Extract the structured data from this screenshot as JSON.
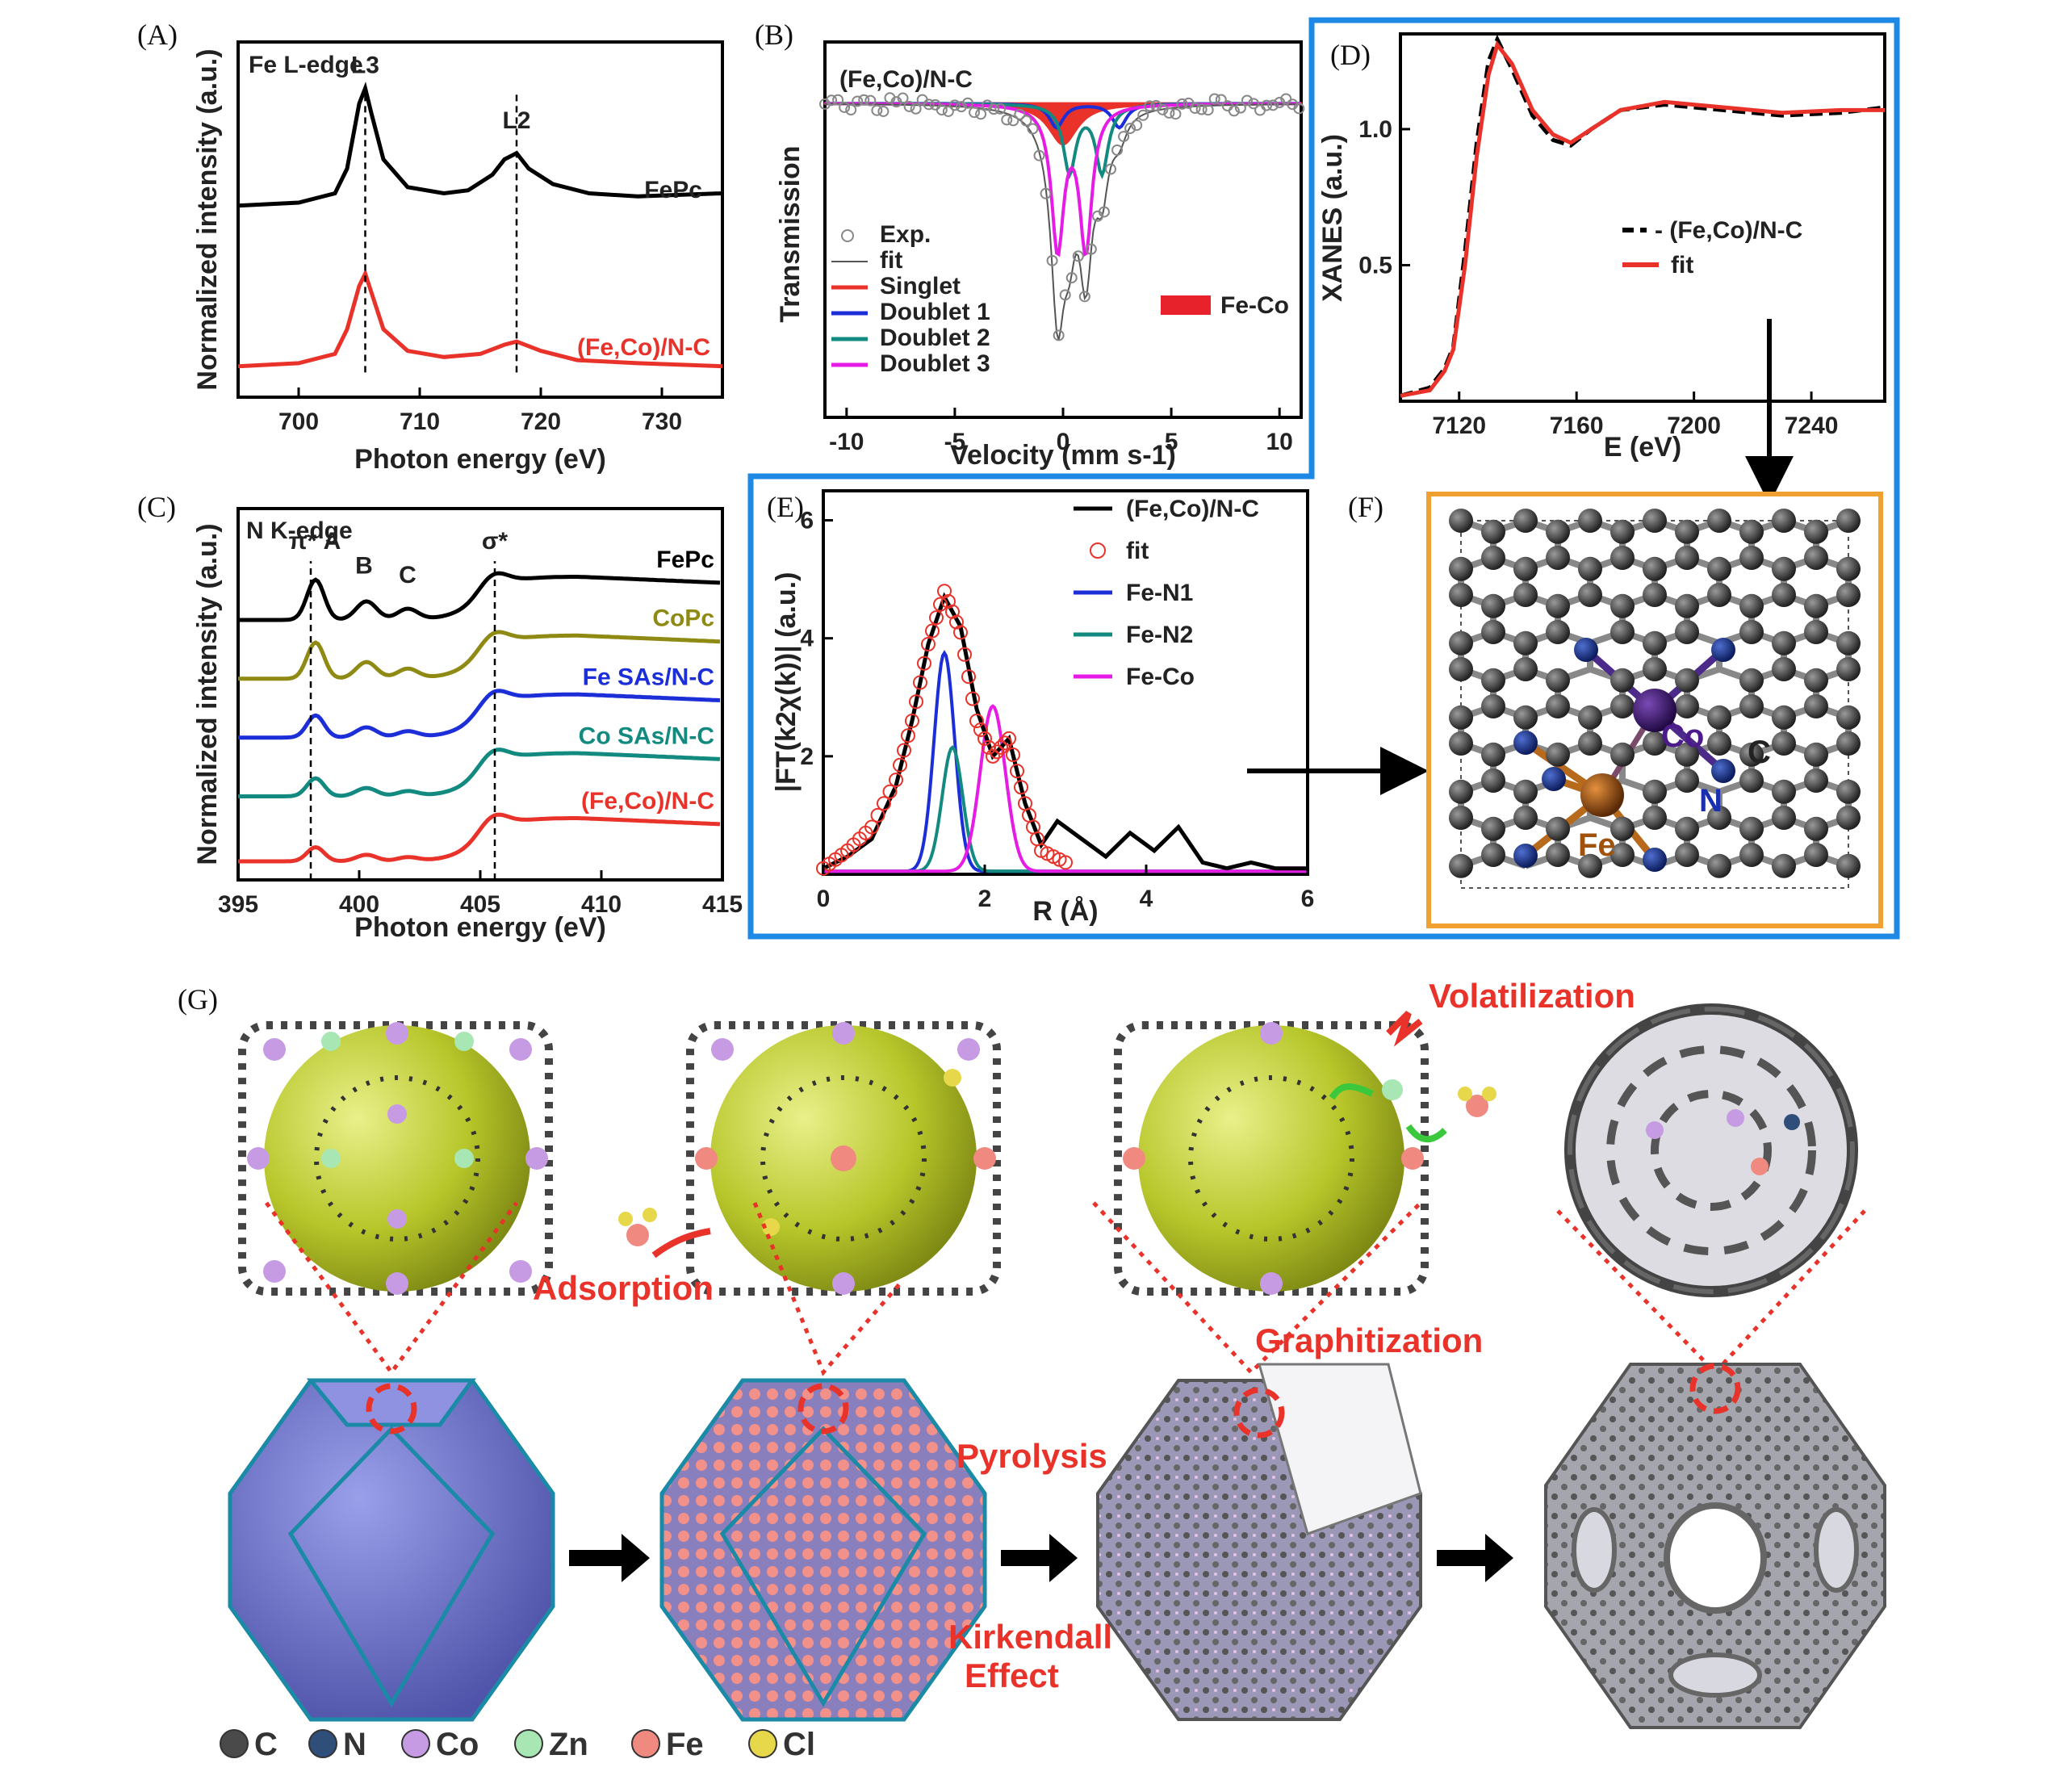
{
  "figure_panels": {
    "A": "(A)",
    "B": "(B)",
    "C": "(C)",
    "D": "(D)",
    "E": "(E)",
    "F": "(F)",
    "G": "(G)"
  },
  "chart_data": [
    {
      "id": "A",
      "type": "line",
      "title": "Fe L-edge",
      "xlabel": "Photon energy (eV)",
      "ylabel": "Normalized intensity (a.u.)",
      "xlim": [
        695,
        735
      ],
      "ylim": [
        0,
        1.15
      ],
      "xticks": [
        "700",
        "710",
        "720",
        "730"
      ],
      "peak_labels": [
        {
          "x": 705.5,
          "text": "L3"
        },
        {
          "x": 718,
          "text": "L2"
        }
      ],
      "series": [
        {
          "name": "FePc",
          "color": "#000000",
          "x": [
            695,
            700,
            703,
            704,
            705,
            705.5,
            706,
            707,
            709,
            712,
            714,
            716,
            717,
            718,
            719,
            721,
            724,
            728,
            735
          ],
          "y": [
            0.62,
            0.63,
            0.66,
            0.74,
            0.95,
            1.0,
            0.92,
            0.77,
            0.68,
            0.66,
            0.67,
            0.72,
            0.77,
            0.79,
            0.74,
            0.69,
            0.66,
            0.65,
            0.66
          ]
        },
        {
          "name": "(Fe,Co)/N-C",
          "color": "#e8322a",
          "x": [
            695,
            700,
            703,
            704,
            705,
            705.5,
            706,
            707,
            709,
            712,
            715,
            717,
            718,
            720,
            723,
            728,
            735
          ],
          "y": [
            0.1,
            0.11,
            0.14,
            0.22,
            0.36,
            0.4,
            0.34,
            0.22,
            0.15,
            0.13,
            0.14,
            0.17,
            0.18,
            0.15,
            0.12,
            0.11,
            0.1
          ]
        }
      ]
    },
    {
      "id": "B",
      "type": "scatter",
      "title": "(Fe,Co)/N-C",
      "xlabel": "Velocity (mm s-1)",
      "ylabel": "Transmission",
      "xlim": [
        -11,
        11
      ],
      "ylim": [
        0,
        1.1
      ],
      "xticks": [
        "-10",
        "-5",
        "0",
        "5",
        "10"
      ],
      "legend": [
        "Exp.",
        "fit",
        "Singlet",
        "Doublet 1",
        "Doublet 2",
        "Doublet 3"
      ],
      "component_label": "Fe-Co",
      "series": [
        {
          "name": "Exp.",
          "x": [
            -10,
            -8,
            -6,
            -4,
            -2,
            -1,
            -0.5,
            0,
            0.5,
            1,
            1.5,
            2,
            3,
            5,
            7,
            9,
            10.5
          ],
          "y": [
            1.01,
            1.0,
            1.0,
            0.99,
            0.95,
            0.75,
            0.38,
            0.1,
            0.35,
            0.5,
            0.42,
            0.78,
            0.95,
            0.99,
            1.0,
            1.0,
            1.01
          ]
        },
        {
          "name": "Singlet",
          "color": "#e8322a",
          "center": 0.0,
          "depth": 0.12,
          "width": 1.6
        },
        {
          "name": "Doublet 1",
          "color": "#1c2ed8",
          "centers": [
            -0.3,
            2.6
          ],
          "depth": 0.07,
          "width": 0.8
        },
        {
          "name": "Doublet 2",
          "color": "#138a80",
          "centers": [
            0.3,
            1.8
          ],
          "depth": 0.2,
          "width": 0.7
        },
        {
          "name": "Doublet 3",
          "color": "#e61be6",
          "centers": [
            -0.25,
            1.05
          ],
          "depth": 0.42,
          "width": 0.7
        }
      ]
    },
    {
      "id": "C",
      "type": "line",
      "title": "N K-edge",
      "xlabel": "Photon energy (eV)",
      "ylabel": "Normalized intensity (a.u.)",
      "xlim": [
        395,
        415
      ],
      "ylim": [
        0,
        1.2
      ],
      "xticks": [
        "395",
        "400",
        "405",
        "410",
        "415"
      ],
      "peak_labels": [
        {
          "x": 398.0,
          "text": "π* A"
        },
        {
          "x": 400.2,
          "text": "B"
        },
        {
          "x": 402.0,
          "text": "C"
        },
        {
          "x": 405.6,
          "text": "σ*"
        }
      ],
      "series": [
        {
          "name": "FePc",
          "color": "#000000",
          "offset": 0.84
        },
        {
          "name": "CoPc",
          "color": "#8f8a13",
          "offset": 0.65
        },
        {
          "name": "Fe SAs/N-C",
          "color": "#1c2ed8",
          "offset": 0.46
        },
        {
          "name": "Co SAs/N-C",
          "color": "#138a80",
          "offset": 0.27
        },
        {
          "name": "(Fe,Co)/N-C",
          "color": "#e8322a",
          "offset": 0.06
        }
      ]
    },
    {
      "id": "D",
      "type": "line",
      "xlabel": "E (eV)",
      "ylabel": "XANES (a.u.)",
      "xlim": [
        7100,
        7265
      ],
      "ylim": [
        0,
        1.35
      ],
      "xticks": [
        "7120",
        "7160",
        "7200",
        "7240"
      ],
      "yticks": [
        "0.5",
        "1.0"
      ],
      "legend": [
        "- (Fe,Co)/N-C",
        "fit"
      ],
      "series": [
        {
          "name": "(Fe,Co)/N-C",
          "color": "#000000",
          "dash": true,
          "x": [
            7100,
            7110,
            7115,
            7118,
            7122,
            7126,
            7130,
            7133,
            7138,
            7145,
            7152,
            7158,
            7165,
            7175,
            7190,
            7210,
            7230,
            7250,
            7265
          ],
          "y": [
            0.02,
            0.05,
            0.12,
            0.2,
            0.55,
            0.95,
            1.25,
            1.33,
            1.22,
            1.05,
            0.96,
            0.94,
            1.0,
            1.07,
            1.09,
            1.07,
            1.05,
            1.06,
            1.08
          ]
        },
        {
          "name": "fit",
          "color": "#e8322a",
          "x": [
            7100,
            7110,
            7115,
            7118,
            7122,
            7126,
            7130,
            7133,
            7138,
            7145,
            7152,
            7158,
            7165,
            7175,
            7190,
            7210,
            7230,
            7250,
            7265
          ],
          "y": [
            0.02,
            0.04,
            0.11,
            0.19,
            0.5,
            0.9,
            1.2,
            1.31,
            1.24,
            1.07,
            0.98,
            0.95,
            1.0,
            1.07,
            1.1,
            1.08,
            1.06,
            1.07,
            1.07
          ]
        }
      ]
    },
    {
      "id": "E",
      "type": "line",
      "xlabel": "R (Å)",
      "ylabel": "|FT(k2χ(k))| (a.u.)",
      "xlim": [
        0,
        6
      ],
      "ylim": [
        0,
        6.5
      ],
      "xticks": [
        "0",
        "2",
        "4",
        "6"
      ],
      "yticks": [
        "2",
        "4",
        "6"
      ],
      "legend": [
        "(Fe,Co)/N-C",
        "fit",
        "Fe-N1",
        "Fe-N2",
        "Fe-Co"
      ],
      "series": [
        {
          "name": "(Fe,Co)/N-C",
          "color": "#000000",
          "x": [
            0,
            0.3,
            0.6,
            0.9,
            1.1,
            1.3,
            1.5,
            1.7,
            1.9,
            2.1,
            2.3,
            2.5,
            2.7,
            2.9,
            3.2,
            3.5,
            3.8,
            4.1,
            4.4,
            4.7,
            5.0,
            5.3,
            5.6,
            6.0
          ],
          "y": [
            0.1,
            0.3,
            0.6,
            1.5,
            2.6,
            3.9,
            4.7,
            4.2,
            2.8,
            2.0,
            2.3,
            1.2,
            0.5,
            0.9,
            0.6,
            0.3,
            0.7,
            0.4,
            0.8,
            0.2,
            0.1,
            0.2,
            0.1,
            0.1
          ]
        },
        {
          "name": "fit",
          "color": "#e8322a",
          "marker": "circle",
          "x": [
            0,
            0.3,
            0.6,
            0.9,
            1.1,
            1.3,
            1.5,
            1.7,
            1.9,
            2.1,
            2.3,
            2.5,
            2.7,
            3.0,
            3.5,
            4.0,
            5.0,
            6.0
          ],
          "y": [
            0.1,
            0.4,
            0.8,
            1.6,
            2.6,
            3.9,
            4.8,
            4.1,
            2.6,
            2.0,
            2.3,
            1.2,
            0.4,
            0.2,
            0.1,
            0.1,
            0.1,
            0.1
          ]
        },
        {
          "name": "Fe-N1",
          "color": "#1c2ed8",
          "center": 1.5,
          "height": 3.7,
          "width": 0.18
        },
        {
          "name": "Fe-N2",
          "color": "#138a80",
          "center": 1.6,
          "height": 2.1,
          "width": 0.18
        },
        {
          "name": "Fe-Co",
          "color": "#e61be6",
          "center": 2.1,
          "height": 2.8,
          "width": 0.22
        }
      ]
    }
  ],
  "panel_f": {
    "atom_labels": {
      "co": "Co",
      "fe": "Fe",
      "n": "N",
      "c": "C"
    }
  },
  "panel_g": {
    "stage_labels": {
      "adsorption": "Adsorption",
      "volatilization": "Volatilization",
      "graphitization": "Graphitization",
      "pyrolysis": "Pyrolysis",
      "kirkendall_1": "Kirkendall",
      "kirkendall_2": "Effect"
    },
    "legend": [
      {
        "symbol": "C",
        "color": "#4a4a4a"
      },
      {
        "symbol": "N",
        "color": "#2f4f7a"
      },
      {
        "symbol": "Co",
        "color": "#c79be3"
      },
      {
        "symbol": "Zn",
        "color": "#a8e6b4"
      },
      {
        "symbol": "Fe",
        "color": "#f08a80"
      },
      {
        "symbol": "Cl",
        "color": "#e6d84a"
      }
    ]
  }
}
